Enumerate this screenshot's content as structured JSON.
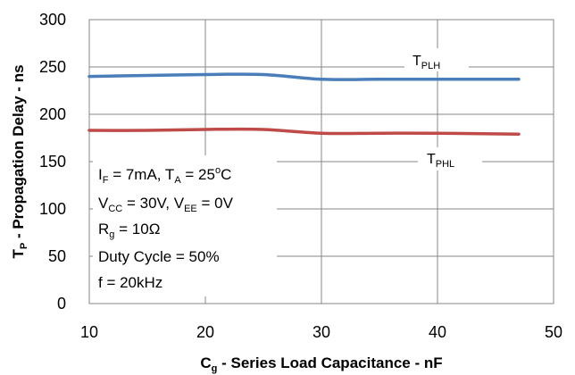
{
  "chart_data": {
    "type": "line",
    "x": [
      10,
      15,
      20,
      25,
      30,
      35,
      40,
      47
    ],
    "series": [
      {
        "name": "T_PLH",
        "label_main": "T",
        "label_sub": "PLH",
        "color": "#4a7ebb",
        "values": [
          240,
          241,
          242,
          242,
          237,
          237,
          237,
          237
        ]
      },
      {
        "name": "T_PHL",
        "label_main": "T",
        "label_sub": "PHL",
        "color": "#be4b48",
        "values": [
          183,
          183,
          184,
          184,
          180,
          180,
          180,
          179
        ]
      }
    ],
    "xlim": [
      10,
      50
    ],
    "ylim": [
      0,
      300
    ],
    "xticks": [
      10,
      20,
      30,
      40,
      50
    ],
    "yticks": [
      0,
      50,
      100,
      150,
      200,
      250,
      300
    ],
    "grid": true,
    "xlabel": {
      "main": "C",
      "sub": "g",
      "rest": " - Series Load Capacitance - nF"
    },
    "ylabel": {
      "main": "T",
      "sub": "P",
      "rest": " - Propagation Delay - ns"
    },
    "annotations": {
      "line1": {
        "a": "I",
        "a_sub": "F",
        "b": " = 7mA, T",
        "b_sub": "A",
        "c": " = 25",
        "c_sup": "o",
        "d": "C"
      },
      "line2": {
        "a": "V",
        "a_sub": "CC",
        "b": " = 30V, V",
        "b_sub": "EE",
        "c": " = 0V"
      },
      "line3": {
        "a": "R",
        "a_sub": "g",
        "b": " = 10Ω"
      },
      "line4": "Duty Cycle = 50%",
      "line5": "f = 20kHz"
    }
  }
}
